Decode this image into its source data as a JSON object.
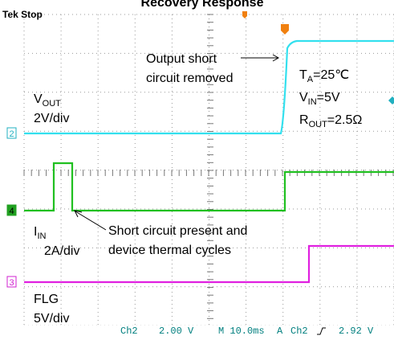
{
  "header": {
    "title": "Recovery Response",
    "status": "Tek Stop"
  },
  "annotations": {
    "removed_1": "Output short",
    "removed_2": "circuit removed",
    "ta": {
      "main": "T",
      "sub": "A",
      "rest": "=25℃"
    },
    "vin": {
      "main": "V",
      "sub": "IN",
      "rest": "=5V"
    },
    "rout": {
      "main": "R",
      "sub": "OUT",
      "rest": "=2.5Ω"
    },
    "present_1": "Short circuit present and",
    "present_2": "device thermal cycles"
  },
  "channels": [
    {
      "marker": "2",
      "name": {
        "main": "V",
        "sub": "OUT"
      },
      "scale": "2V/div"
    },
    {
      "marker": "4",
      "name": {
        "main": "I",
        "sub": "IN"
      },
      "scale": "2A/div"
    },
    {
      "marker": "3",
      "name": {
        "main": "FLG"
      },
      "scale": "5V/div"
    }
  ],
  "statusbar": {
    "ch": "Ch2",
    "volts": "2.00 V",
    "time": "M 10.0ms",
    "trig": "A",
    "trig_ch": "Ch2",
    "level": "2.92 V"
  }
}
